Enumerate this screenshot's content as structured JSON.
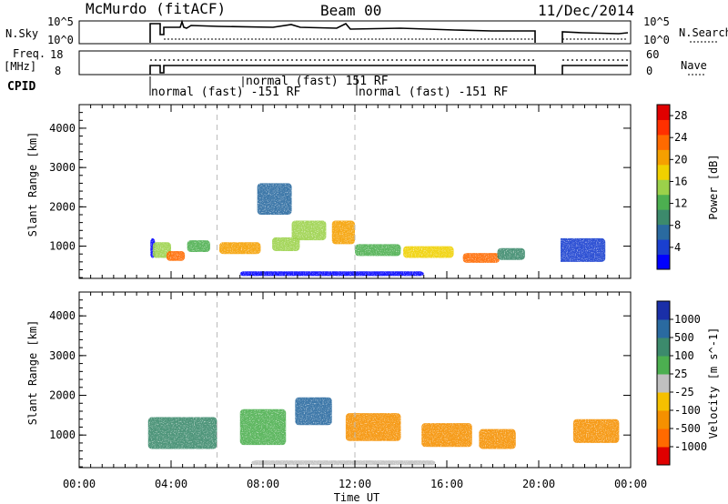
{
  "header": {
    "station": "McMurdo (fitACF)",
    "beam": "Beam 00",
    "date": "11/Dec/2014"
  },
  "status_panels": {
    "nsky_label": "N.Sky",
    "nsky_ticks": [
      "10^5",
      "10^0"
    ],
    "nsearch_label": "N.Search",
    "nsearch_ticks": [
      "10^5",
      "10^0"
    ],
    "freq_label": "Freq.",
    "freq_unit": "[MHz]",
    "freq_ticks": [
      "18",
      "8"
    ],
    "nave_label": "Nave",
    "nave_ticks": [
      "60",
      "0"
    ],
    "cpid_label": "CPID",
    "cpid_segments": [
      {
        "label": "normal (fast) -151 RF"
      },
      {
        "label": "normal (fast) 151 RF"
      },
      {
        "label": "normal (fast) -151 RF"
      }
    ]
  },
  "chart_data": [
    {
      "type": "heatmap",
      "name": "power",
      "xlabel": "Time UT",
      "ylabel": "Slant Range [km]",
      "x_ticks": [
        "00:00",
        "04:00",
        "08:00",
        "12:00",
        "16:00",
        "20:00",
        "00:00"
      ],
      "x_range_hours": [
        0,
        24
      ],
      "y_ticks": [
        1000,
        2000,
        3000,
        4000
      ],
      "ylim": [
        180,
        4600
      ],
      "colorbar_label": "Power [dB]",
      "colorbar_ticks": [
        4,
        8,
        12,
        16,
        20,
        24,
        28
      ],
      "colorbar_range": [
        0,
        30
      ],
      "colorbar_colors": [
        "#0000ff",
        "#1a3fcf",
        "#2a6aa0",
        "#3c8a6c",
        "#4caf50",
        "#9bd14a",
        "#f0d000",
        "#f5a000",
        "#ff6a00",
        "#ff3000",
        "#e00000"
      ],
      "data_gaps_hours": [
        [
          0,
          2.95
        ],
        [
          19.9,
          20.95
        ]
      ],
      "cells": [
        [
          3.2,
          0.2,
          950,
          500,
          2.5
        ],
        [
          3.6,
          0.8,
          900,
          400,
          14
        ],
        [
          4.2,
          0.8,
          750,
          250,
          24
        ],
        [
          5.2,
          1.0,
          1000,
          300,
          12
        ],
        [
          7.0,
          1.8,
          950,
          300,
          21
        ],
        [
          9.0,
          1.2,
          1050,
          350,
          15
        ],
        [
          10.0,
          1.5,
          1400,
          500,
          16
        ],
        [
          11.5,
          1.0,
          1350,
          600,
          21
        ],
        [
          13.0,
          2.0,
          900,
          300,
          12
        ],
        [
          15.2,
          2.2,
          850,
          300,
          19
        ],
        [
          17.5,
          1.6,
          700,
          250,
          22
        ],
        [
          18.8,
          1.2,
          800,
          300,
          10
        ],
        [
          8.5,
          1.5,
          2200,
          800,
          7
        ],
        [
          21.8,
          2.2,
          900,
          600,
          4
        ],
        [
          11.0,
          8.0,
          300,
          120,
          2
        ]
      ]
    },
    {
      "type": "heatmap",
      "name": "velocity",
      "xlabel": "Time UT",
      "ylabel": "Slant Range [km]",
      "x_ticks": [
        "00:00",
        "04:00",
        "08:00",
        "12:00",
        "16:00",
        "20:00",
        "00:00"
      ],
      "x_range_hours": [
        0,
        24
      ],
      "y_ticks": [
        1000,
        2000,
        3000,
        4000
      ],
      "ylim": [
        180,
        4600
      ],
      "colorbar_label": "Velocity [m s^-1]",
      "colorbar_ticks": [
        1000,
        500,
        100,
        25,
        -25,
        -100,
        -500,
        -1000
      ],
      "colorbar_colors": [
        "#1a2fa8",
        "#2a6aa0",
        "#3c8a6c",
        "#4caf50",
        "#c0c0c0",
        "#f5c000",
        "#f59000",
        "#ff6a00",
        "#e00000"
      ],
      "data_gaps_hours": [
        [
          0,
          2.95
        ],
        [
          19.9,
          20.95
        ]
      ],
      "cells": [
        [
          4.5,
          3.0,
          1050,
          800,
          150
        ],
        [
          8.0,
          2.0,
          1200,
          900,
          80
        ],
        [
          10.2,
          1.6,
          1600,
          700,
          600
        ],
        [
          12.8,
          2.4,
          1200,
          700,
          -110
        ],
        [
          16.0,
          2.2,
          1000,
          600,
          -120
        ],
        [
          18.2,
          1.6,
          900,
          500,
          -300
        ],
        [
          22.5,
          2.0,
          1100,
          600,
          -200
        ],
        [
          11.5,
          8.0,
          300,
          120,
          0
        ]
      ]
    }
  ]
}
